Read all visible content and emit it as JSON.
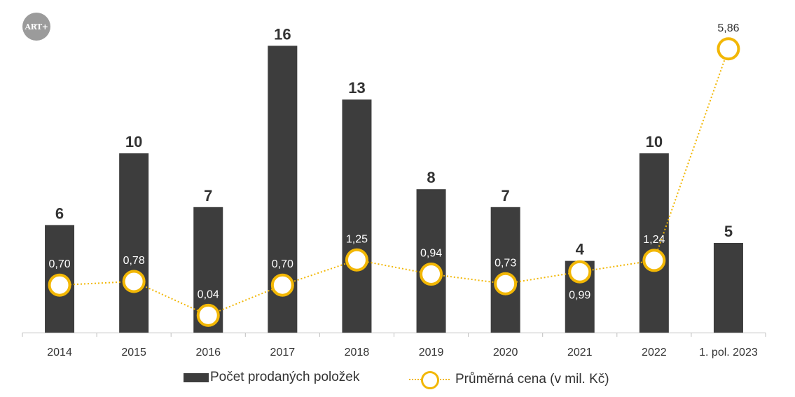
{
  "logo": {
    "text": "ART+"
  },
  "chart_data": {
    "type": "bar",
    "categories": [
      "2014",
      "2015",
      "2016",
      "2017",
      "2018",
      "2019",
      "2020",
      "2021",
      "2022",
      "1. pol. 2023"
    ],
    "series": [
      {
        "name": "Počet prodaných položek",
        "type": "bar",
        "values": [
          6,
          10,
          7,
          16,
          13,
          8,
          7,
          4,
          10,
          5
        ],
        "labels": [
          "6",
          "10",
          "7",
          "16",
          "13",
          "8",
          "7",
          "4",
          "10",
          "5"
        ],
        "color": "#3d3d3d"
      },
      {
        "name": "Průměrná cena (v mil. Kč)",
        "type": "line",
        "values": [
          0.7,
          0.78,
          0.04,
          0.7,
          1.25,
          0.94,
          0.73,
          0.99,
          1.24,
          5.86
        ],
        "labels": [
          "0,70",
          "0,78",
          "0,04",
          "0,70",
          "1,25",
          "0,94",
          "0,73",
          "0,99",
          "1,24",
          "5,86"
        ],
        "color": "#f2b705",
        "line_style": "dotted",
        "marker": "hollow-circle"
      }
    ],
    "title": "",
    "xlabel": "",
    "ylabel": "",
    "grid": false,
    "legend_position": "bottom"
  },
  "legend": {
    "bar_label": "Počet prodaných položek",
    "line_label": "Průměrná cena (v mil. Kč)"
  }
}
